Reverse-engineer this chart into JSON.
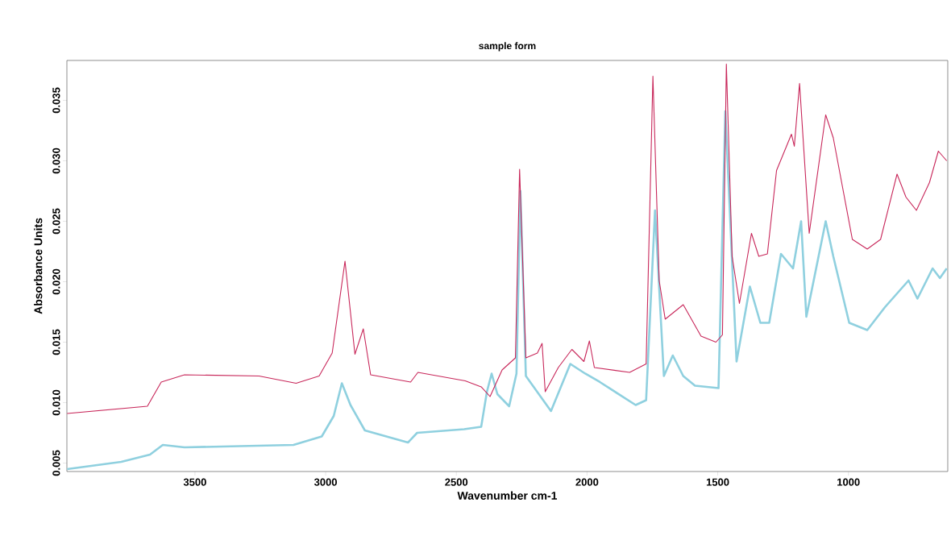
{
  "chart_data": {
    "type": "line",
    "title": "sample form",
    "xlabel": "Wavenumber cm-1",
    "ylabel": "Absorbance Units",
    "xlim": [
      3990,
      620
    ],
    "ylim": [
      0.0043,
      0.0383
    ],
    "xticks": [
      3500,
      3000,
      2500,
      2000,
      1500,
      1000
    ],
    "yticks": [
      0.005,
      {
        "value": 0.01,
        "label": "0.010"
      },
      0.015,
      {
        "value": 0.02,
        "label": "0.020"
      },
      0.025,
      {
        "value": 0.03,
        "label": "0.030"
      },
      0.035
    ],
    "grid": false,
    "series": [
      {
        "color": "#8fd0df",
        "x": [
          3989,
          3782,
          3672,
          3623,
          3540,
          3123,
          3015,
          2969,
          2938,
          2905,
          2850,
          2685,
          2650,
          2470,
          2405,
          2383,
          2365,
          2343,
          2298,
          2270,
          2255,
          2234,
          2138,
          2064,
          2007,
          1951,
          1814,
          1774,
          1740,
          1706,
          1672,
          1632,
          1587,
          1497,
          1471,
          1428,
          1377,
          1337,
          1303,
          1258,
          1212,
          1181,
          1161,
          1087,
          1058,
          997,
          928,
          860,
          770,
          736,
          678,
          650,
          624
        ],
        "values": [
          0.0045,
          0.0051,
          0.0057,
          0.0065,
          0.0063,
          0.0065,
          0.0072,
          0.0089,
          0.0116,
          0.0098,
          0.0077,
          0.0067,
          0.0075,
          0.0078,
          0.008,
          0.0109,
          0.0124,
          0.0107,
          0.0097,
          0.0124,
          0.0275,
          0.0122,
          0.0093,
          0.0132,
          0.0124,
          0.0117,
          0.0098,
          0.0102,
          0.0259,
          0.0122,
          0.0139,
          0.0122,
          0.0114,
          0.0112,
          0.0341,
          0.0134,
          0.0196,
          0.0166,
          0.0166,
          0.0223,
          0.0211,
          0.025,
          0.0171,
          0.025,
          0.0221,
          0.0166,
          0.016,
          0.0179,
          0.0201,
          0.0186,
          0.0211,
          0.0203,
          0.0211
        ]
      },
      {
        "color": "#c8275a",
        "x": [
          3989,
          3682,
          3629,
          3540,
          3255,
          3113,
          3025,
          2975,
          2926,
          2888,
          2856,
          2828,
          2675,
          2647,
          2466,
          2405,
          2371,
          2325,
          2274,
          2258,
          2234,
          2190,
          2172,
          2160,
          2110,
          2058,
          2012,
          1991,
          1972,
          1837,
          1774,
          1748,
          1724,
          1701,
          1632,
          1564,
          1507,
          1482,
          1467,
          1445,
          1417,
          1371,
          1343,
          1310,
          1275,
          1218,
          1207,
          1187,
          1150,
          1087,
          1058,
          985,
          928,
          877,
          814,
          780,
          740,
          690,
          656,
          624
        ],
        "values": [
          0.0091,
          0.0097,
          0.0117,
          0.0123,
          0.0122,
          0.0116,
          0.0122,
          0.0141,
          0.0217,
          0.014,
          0.0161,
          0.0123,
          0.0117,
          0.0125,
          0.0118,
          0.0113,
          0.0105,
          0.0127,
          0.0137,
          0.0293,
          0.0137,
          0.0141,
          0.0149,
          0.0109,
          0.0129,
          0.0144,
          0.0134,
          0.0151,
          0.0129,
          0.0125,
          0.0132,
          0.037,
          0.0201,
          0.0169,
          0.0181,
          0.0155,
          0.015,
          0.0156,
          0.038,
          0.0221,
          0.0182,
          0.024,
          0.0221,
          0.0223,
          0.0292,
          0.0322,
          0.0312,
          0.0364,
          0.024,
          0.0338,
          0.0319,
          0.0235,
          0.0227,
          0.0235,
          0.0289,
          0.027,
          0.0259,
          0.0282,
          0.0308,
          0.03
        ]
      }
    ]
  }
}
